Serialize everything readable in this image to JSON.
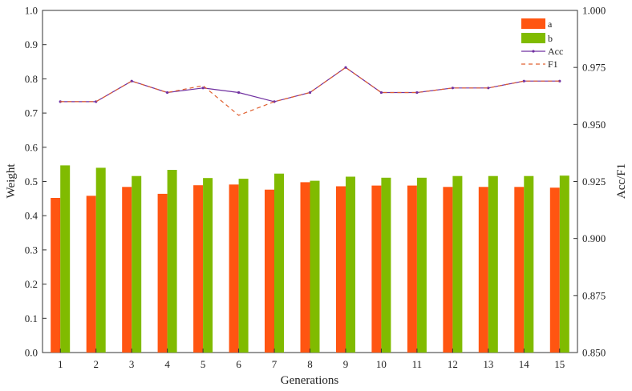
{
  "chart_data": {
    "type": "bar",
    "xlabel": "Generations",
    "ylabel": "Weight",
    "y2label": "Acc/F1",
    "categories": [
      "1",
      "2",
      "3",
      "4",
      "5",
      "6",
      "7",
      "8",
      "9",
      "10",
      "11",
      "12",
      "13",
      "14",
      "15"
    ],
    "ylim": [
      0,
      1
    ],
    "yticks": [
      "0.0",
      "0.1",
      "0.2",
      "0.3",
      "0.4",
      "0.5",
      "0.6",
      "0.7",
      "0.8",
      "0.9",
      "1.0"
    ],
    "y2lim": [
      0.85,
      1.0
    ],
    "y2ticks": [
      "0.850",
      "0.875",
      "0.900",
      "0.925",
      "0.950",
      "0.975",
      "1.000"
    ],
    "grid": false,
    "legend_position": "top-right",
    "series": [
      {
        "name": "a",
        "kind": "bar",
        "axis": "left",
        "color": "#ff5511",
        "values": [
          0.452,
          0.458,
          0.484,
          0.464,
          0.489,
          0.491,
          0.476,
          0.498,
          0.486,
          0.488,
          0.488,
          0.484,
          0.484,
          0.484,
          0.482
        ]
      },
      {
        "name": "b",
        "kind": "bar",
        "axis": "left",
        "color": "#80bb00",
        "values": [
          0.547,
          0.54,
          0.516,
          0.534,
          0.51,
          0.508,
          0.523,
          0.502,
          0.514,
          0.511,
          0.511,
          0.516,
          0.516,
          0.516,
          0.517
        ]
      },
      {
        "name": "Acc",
        "kind": "line",
        "axis": "right",
        "color": "#7030a0",
        "style": "solid-marker",
        "values": [
          0.96,
          0.96,
          0.969,
          0.964,
          0.966,
          0.964,
          0.96,
          0.964,
          0.975,
          0.964,
          0.964,
          0.966,
          0.966,
          0.969,
          0.969
        ]
      },
      {
        "name": "F1",
        "kind": "line",
        "axis": "right",
        "color": "#e06030",
        "style": "dashed",
        "values": [
          0.96,
          0.96,
          0.969,
          0.964,
          0.967,
          0.954,
          0.96,
          0.964,
          0.975,
          0.964,
          0.964,
          0.966,
          0.966,
          0.969,
          0.969
        ]
      }
    ]
  }
}
